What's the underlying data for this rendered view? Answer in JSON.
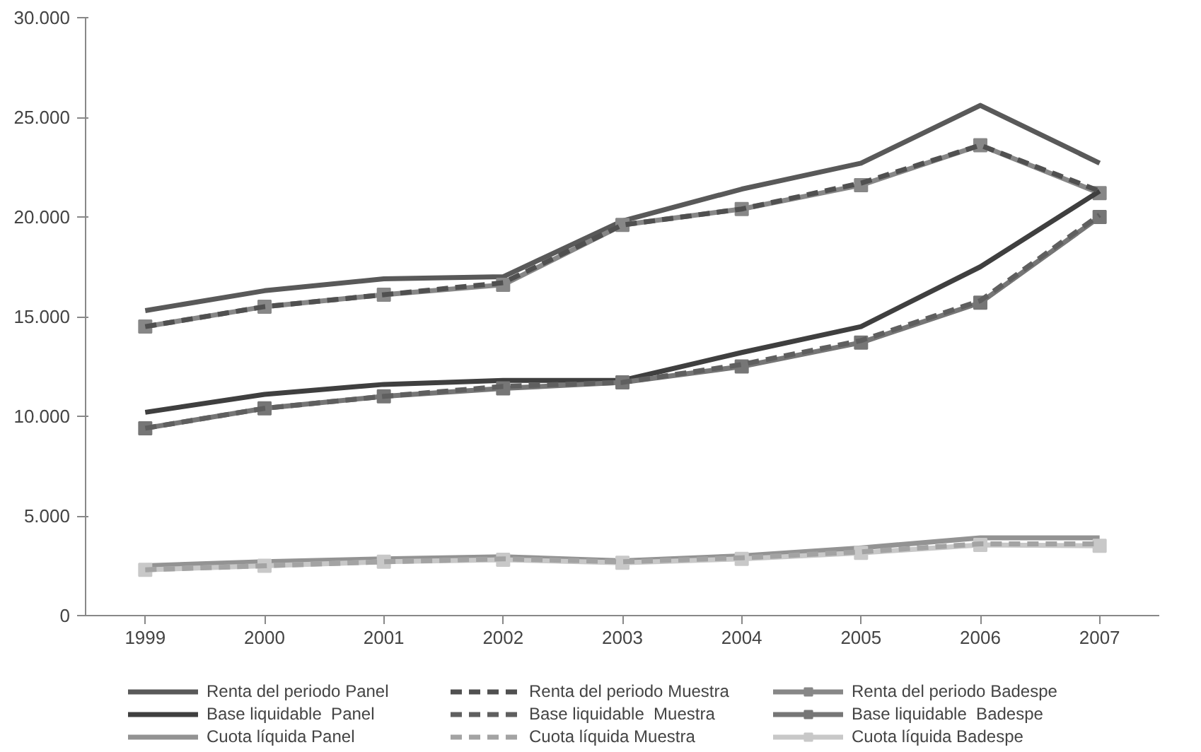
{
  "chart_data": {
    "type": "line",
    "categories": [
      "1999",
      "2000",
      "2001",
      "2002",
      "2003",
      "2004",
      "2005",
      "2006",
      "2007"
    ],
    "ylim": [
      0,
      30000
    ],
    "yticks": [
      0,
      {
        "value": 5000,
        "label": "5.000"
      },
      {
        "value": 10000,
        "label": "10.000"
      },
      {
        "value": 15000,
        "label": "15.000"
      },
      {
        "value": 20000,
        "label": "20.000"
      },
      {
        "value": 25000,
        "label": "25.000"
      },
      {
        "value": 30000,
        "label": "30.000"
      }
    ],
    "grid": false,
    "legend": "bottom",
    "series": [
      {
        "name": "Renta del periodo Panel",
        "color": "#595959",
        "line_style": "solid",
        "marker": "none",
        "values": [
          15300,
          16300,
          16900,
          17000,
          19800,
          21400,
          22700,
          25600,
          22700
        ]
      },
      {
        "name": "Renta del periodo Muestra",
        "color": "#505050",
        "line_style": "dashed",
        "marker": "none",
        "values": [
          14500,
          15500,
          16100,
          16700,
          19600,
          20400,
          21700,
          23600,
          21300
        ]
      },
      {
        "name": "Renta del periodo Badespe",
        "color": "#878787",
        "line_style": "solid",
        "marker": "square",
        "values": [
          14500,
          15500,
          16100,
          16600,
          19600,
          20400,
          21600,
          23600,
          21200
        ]
      },
      {
        "name": "Base liquidable  Panel",
        "color": "#3f3f3f",
        "line_style": "solid",
        "marker": "none",
        "values": [
          10200,
          11100,
          11600,
          11800,
          11800,
          13200,
          14500,
          17500,
          21300
        ]
      },
      {
        "name": "Base liquidable  Muestra",
        "color": "#5f5f5f",
        "line_style": "dashed",
        "marker": "none",
        "values": [
          9400,
          10400,
          11000,
          11500,
          11700,
          12600,
          13800,
          15800,
          20100
        ]
      },
      {
        "name": "Base liquidable  Badespe",
        "color": "#767676",
        "line_style": "solid",
        "marker": "square",
        "values": [
          9400,
          10400,
          11000,
          11400,
          11700,
          12500,
          13700,
          15700,
          20000
        ]
      },
      {
        "name": "Cuota líquida Panel",
        "color": "#939393",
        "line_style": "solid",
        "marker": "none",
        "values": [
          2500,
          2700,
          2850,
          2950,
          2750,
          3000,
          3400,
          3900,
          3900
        ]
      },
      {
        "name": "Cuota líquida Muestra",
        "color": "#a3a3a3",
        "line_style": "dashed",
        "marker": "none",
        "values": [
          2300,
          2500,
          2700,
          2850,
          2700,
          2900,
          3200,
          3600,
          3600
        ]
      },
      {
        "name": "Cuota líquida Badespe",
        "color": "#c8c8c8",
        "line_style": "solid",
        "marker": "square",
        "values": [
          2300,
          2500,
          2700,
          2800,
          2650,
          2850,
          3150,
          3550,
          3500
        ]
      }
    ]
  }
}
